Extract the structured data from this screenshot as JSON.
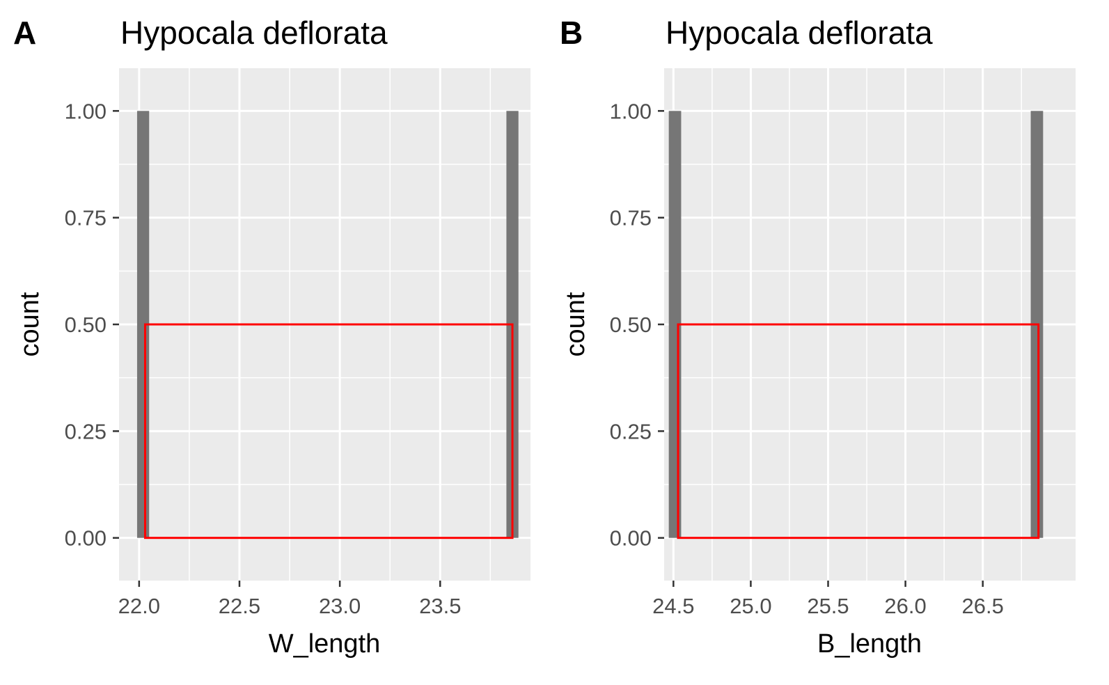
{
  "chart_data": [
    {
      "type": "bar",
      "panel_tag": "A",
      "title": "Hypocala deflorata",
      "xlabel": "W_length",
      "ylabel": "count",
      "xlim": [
        21.9,
        23.95
      ],
      "ylim": [
        -0.1,
        1.1
      ],
      "xticks": [
        22.0,
        22.5,
        23.0,
        23.5
      ],
      "xtick_labels": [
        "22.0",
        "22.5",
        "23.0",
        "23.5"
      ],
      "yticks": [
        0,
        0.25,
        0.5,
        0.75,
        1.0
      ],
      "ytick_labels": [
        "0.00",
        "0.25",
        "0.50",
        "0.75",
        "1.00"
      ],
      "grid": true,
      "bars": [
        {
          "xmin": 21.99,
          "xmax": 22.05,
          "value": 1
        },
        {
          "xmin": 23.83,
          "xmax": 23.89,
          "value": 1
        }
      ],
      "highlight_rect": {
        "xmin": 22.03,
        "xmax": 23.86,
        "ymin": 0,
        "ymax": 0.5,
        "color": "#ff0000"
      },
      "bar_color": "#767676",
      "panel_background": "#ebebeb"
    },
    {
      "type": "bar",
      "panel_tag": "B",
      "title": "Hypocala deflorata",
      "xlabel": "B_length",
      "ylabel": "count",
      "xlim": [
        24.44,
        27.1
      ],
      "ylim": [
        -0.1,
        1.1
      ],
      "xticks": [
        24.5,
        25.0,
        25.5,
        26.0,
        26.5
      ],
      "xtick_labels": [
        "24.5",
        "25.0",
        "25.5",
        "26.0",
        "26.5"
      ],
      "yticks": [
        0,
        0.25,
        0.5,
        0.75,
        1.0
      ],
      "ytick_labels": [
        "0.00",
        "0.25",
        "0.50",
        "0.75",
        "1.00"
      ],
      "grid": true,
      "bars": [
        {
          "xmin": 24.47,
          "xmax": 24.55,
          "value": 1
        },
        {
          "xmin": 26.81,
          "xmax": 26.89,
          "value": 1
        }
      ],
      "highlight_rect": {
        "xmin": 24.53,
        "xmax": 26.86,
        "ymin": 0,
        "ymax": 0.5,
        "color": "#ff0000"
      },
      "bar_color": "#767676",
      "panel_background": "#ebebeb"
    }
  ]
}
